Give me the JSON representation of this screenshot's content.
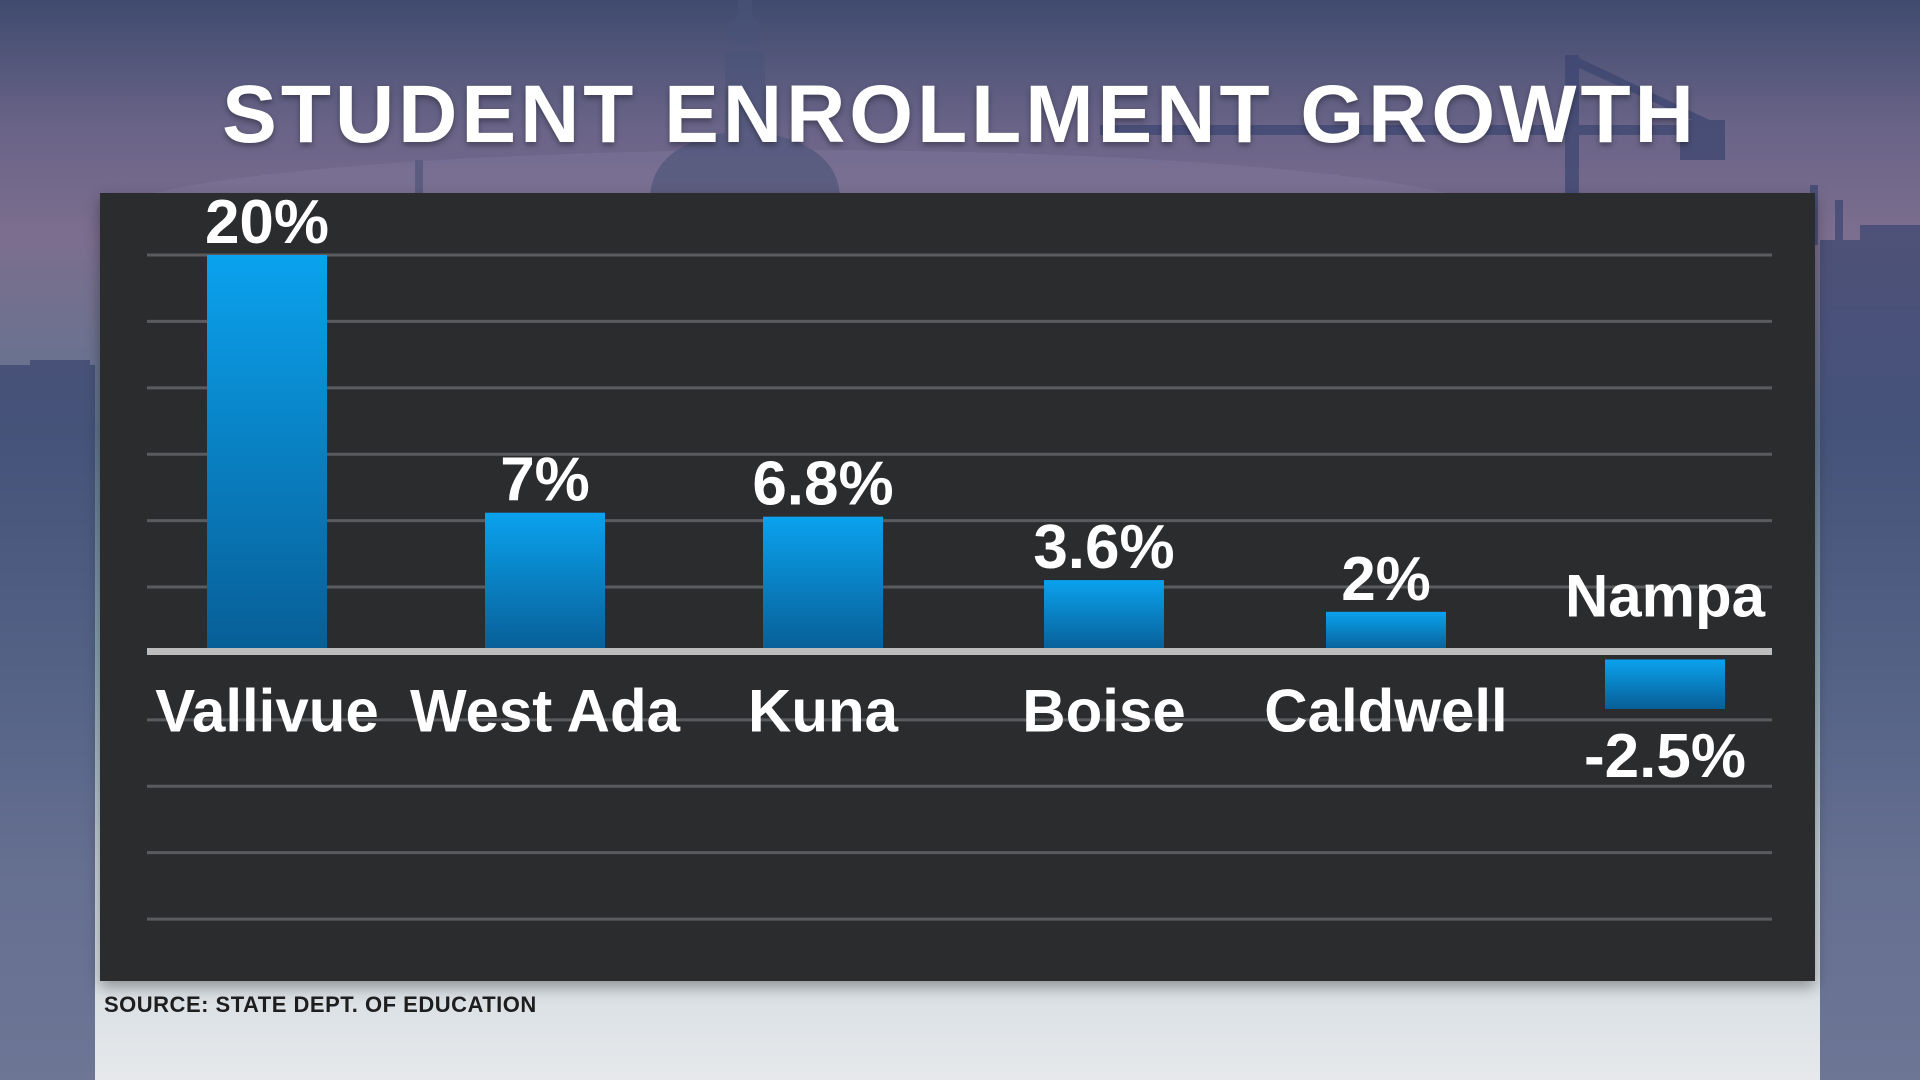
{
  "title": "STUDENT ENROLLMENT GROWTH",
  "source": "SOURCE: STATE DEPT. OF EDUCATION",
  "colors": {
    "bar_top": "#0aa2ee",
    "bar_bottom": "#085e96",
    "panel": "#2b2c2e",
    "gridline": "#5a5b5e",
    "baseline": "#bdbdbd",
    "text": "#ffffff"
  },
  "chart_data": {
    "type": "bar",
    "title": "STUDENT ENROLLMENT GROWTH",
    "xlabel": "",
    "ylabel": "",
    "categories": [
      "Vallivue",
      "West Ada",
      "Kuna",
      "Boise",
      "Caldwell",
      "Nampa"
    ],
    "values": [
      20,
      7,
      6.8,
      3.6,
      2,
      -2.5
    ],
    "value_labels": [
      "20%",
      "7%",
      "6.8%",
      "3.6%",
      "2%",
      "-2.5%"
    ],
    "ylim": [
      -14,
      20
    ],
    "grid": true,
    "grid_step": 3.35,
    "legend": "none"
  }
}
